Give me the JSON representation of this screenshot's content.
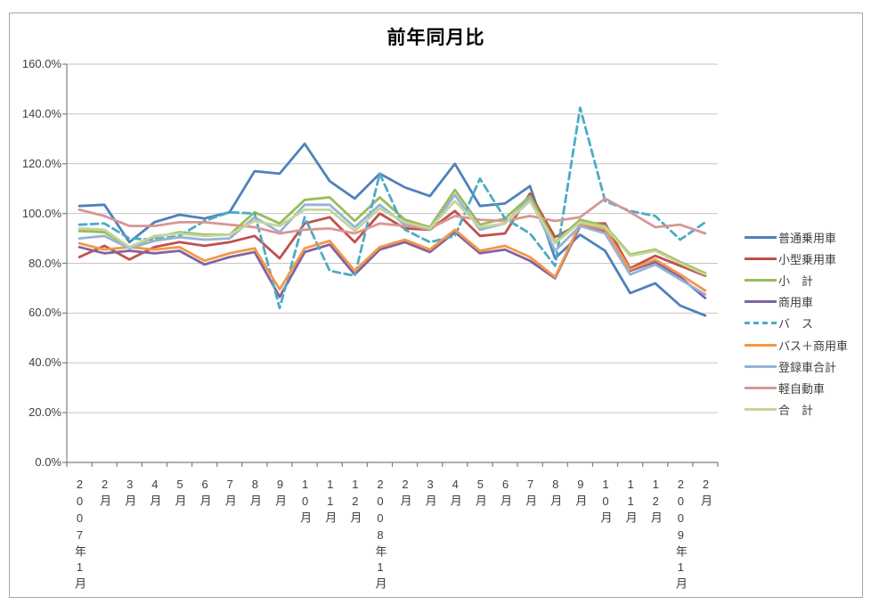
{
  "window": {
    "background": "#FFFFFF",
    "frame_border": "#A6A6A6"
  },
  "title": "前年同月比",
  "axis_color": "#808080",
  "grid_color": "#C6C6C6",
  "chart_data": {
    "type": "line",
    "title": "前年同月比",
    "xlabel": "",
    "ylabel": "",
    "ylim": [
      0,
      160
    ],
    "y_tick_step": 20,
    "y_tick_labels": [
      "0.0%",
      "20.0%",
      "40.0%",
      "60.0%",
      "80.0%",
      "100.0%",
      "120.0%",
      "140.0%",
      "160.0%"
    ],
    "grid": true,
    "legend_position": "right",
    "x_labels": [
      "2007年1月",
      "2月",
      "3月",
      "4月",
      "5月",
      "6月",
      "7月",
      "8月",
      "9月",
      "10月",
      "11月",
      "12月",
      "2008年1月",
      "2月",
      "3月",
      "4月",
      "5月",
      "6月",
      "7月",
      "8月",
      "9月",
      "10月",
      "11月",
      "12月",
      "2009年1月",
      "2月"
    ],
    "series": [
      {
        "name": "普通乗用車",
        "color": "#4F81BD",
        "dash": false,
        "values": [
          103,
          103.5,
          88.5,
          96.5,
          99.5,
          98,
          100.5,
          117,
          116,
          128,
          113,
          106,
          116,
          110.5,
          107,
          120,
          103,
          104,
          111,
          82,
          91.5,
          85,
          68,
          72,
          63,
          59
        ]
      },
      {
        "name": "小型乗用車",
        "color": "#C0504D",
        "dash": false,
        "values": [
          82.5,
          87,
          81.5,
          86.5,
          88.5,
          87,
          88.5,
          91,
          82,
          96,
          98.5,
          88.5,
          100,
          94,
          93.5,
          101,
          91,
          92,
          108,
          90.5,
          96,
          96,
          78,
          83,
          79,
          75
        ]
      },
      {
        "name": "小　計",
        "color": "#9BBB59",
        "dash": false,
        "values": [
          93,
          92.5,
          86.5,
          90.5,
          92.5,
          91.5,
          91.5,
          100.5,
          96,
          105.5,
          106.5,
          97,
          106.5,
          97.5,
          94.5,
          109.5,
          95.5,
          98,
          107,
          88.5,
          97.5,
          95,
          83.5,
          85.5,
          80.5,
          76
        ]
      },
      {
        "name": "商用車",
        "color": "#8064A2",
        "dash": false,
        "values": [
          86.5,
          84,
          85,
          84,
          85,
          79.5,
          82.5,
          84.5,
          66.5,
          84.5,
          87.5,
          75.5,
          85.5,
          88.5,
          84.5,
          92.5,
          84,
          85.5,
          81,
          74,
          95,
          93,
          77,
          80.5,
          74.5,
          66
        ]
      },
      {
        "name": "バ　ス",
        "color": "#4BACC6",
        "dash": true,
        "values": [
          95.5,
          96,
          90,
          89.5,
          91,
          97,
          100.5,
          100,
          62,
          98.5,
          77,
          75,
          116,
          93.5,
          88.5,
          91,
          114,
          98,
          92,
          79,
          142.5,
          105,
          101,
          99,
          89.5,
          96.5
        ]
      },
      {
        "name": "バス＋商用車",
        "color": "#F79646",
        "dash": false,
        "values": [
          88,
          85.5,
          86.5,
          85.5,
          86.5,
          81,
          84,
          86,
          69.5,
          86,
          89,
          77,
          86.5,
          89.5,
          85.5,
          93.5,
          85,
          87,
          82.5,
          74.5,
          96,
          93.5,
          77.5,
          81.5,
          75.5,
          69
        ]
      },
      {
        "name": "登録車合計",
        "color": "#95B3D7",
        "dash": false,
        "values": [
          90,
          91,
          86,
          89,
          90.5,
          89.5,
          90,
          98.5,
          92.5,
          103.5,
          103.5,
          94.5,
          103.5,
          95.5,
          93.5,
          107.5,
          93.5,
          96,
          106,
          85,
          95,
          92,
          75.5,
          79.5,
          73.5,
          67.5
        ]
      },
      {
        "name": "軽自動車",
        "color": "#D99694",
        "dash": false,
        "values": [
          101.5,
          99,
          95,
          95,
          96.5,
          96.5,
          95.5,
          94.5,
          92,
          93.5,
          94,
          92,
          96,
          95,
          94,
          99,
          97.5,
          97,
          99,
          97,
          98.5,
          106,
          100.5,
          94.5,
          95.5,
          92
        ]
      },
      {
        "name": "合　計",
        "color": "#C3D69B",
        "dash": false,
        "values": [
          94,
          93.5,
          86.5,
          91,
          92,
          91,
          91.5,
          97,
          95,
          101.5,
          101.5,
          93,
          102,
          96.5,
          94,
          105,
          94.5,
          96,
          105,
          88,
          96.5,
          94.5,
          83,
          85,
          80,
          75.5
        ]
      }
    ]
  }
}
